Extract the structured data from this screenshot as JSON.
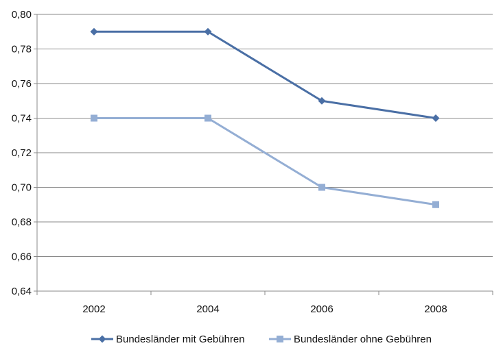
{
  "chart_data": {
    "type": "line",
    "title": "",
    "xlabel": "",
    "ylabel": "",
    "categories": [
      "2002",
      "2004",
      "2006",
      "2008"
    ],
    "ylim": [
      0.64,
      0.8
    ],
    "yticks": [
      0.64,
      0.66,
      0.68,
      0.7,
      0.72,
      0.74,
      0.76,
      0.78,
      0.8
    ],
    "ytick_labels": [
      "0,64",
      "0,66",
      "0,68",
      "0,70",
      "0,72",
      "0,74",
      "0,76",
      "0,78",
      "0,80"
    ],
    "grid": true,
    "legend_position": "bottom",
    "series": [
      {
        "name": "Bundesländer mit Gebühren",
        "values": [
          0.79,
          0.79,
          0.75,
          0.74
        ],
        "color": "#4a6fa5",
        "marker": "diamond"
      },
      {
        "name": "Bundesländer ohne Gebühren",
        "values": [
          0.74,
          0.74,
          0.7,
          0.69
        ],
        "color": "#94aed4",
        "marker": "square"
      }
    ]
  }
}
